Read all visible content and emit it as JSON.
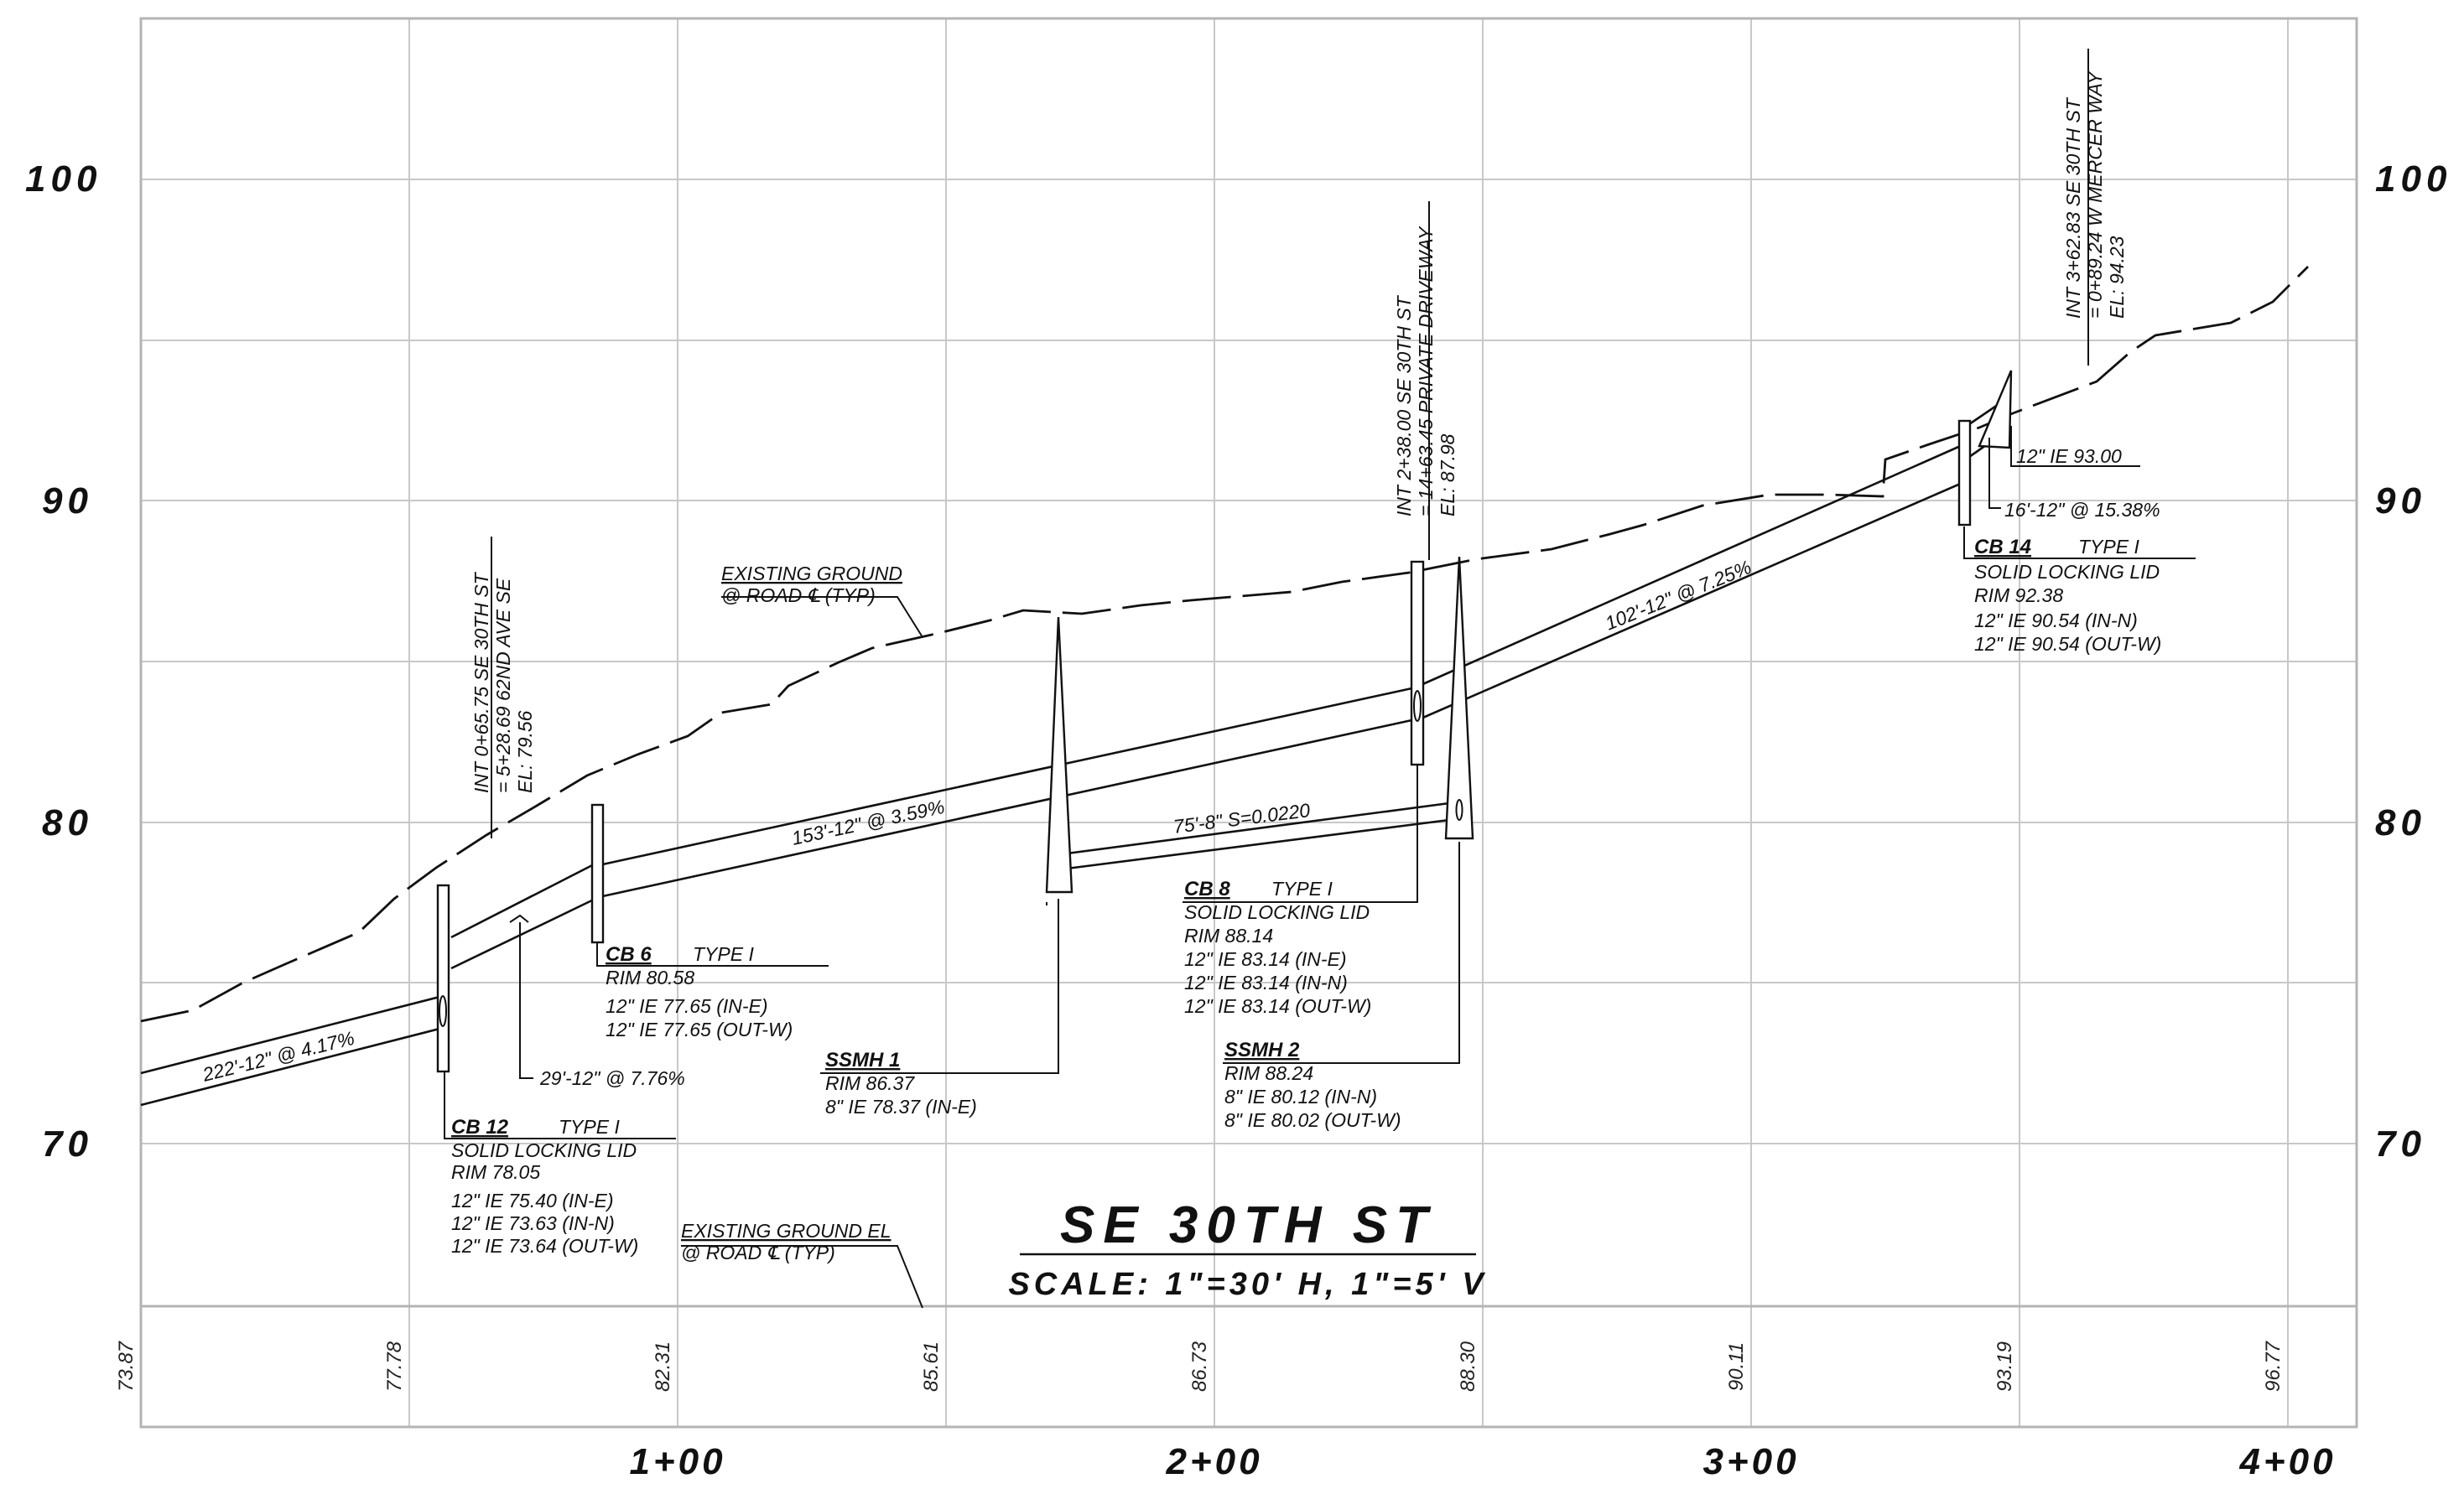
{
  "title": "SE 30TH ST",
  "scale": "SCALE: 1\"=30' H, 1\"=5' V",
  "elevation_labels": [
    "100",
    "90",
    "80",
    "70"
  ],
  "station_labels": [
    "1+00",
    "2+00",
    "3+00",
    "4+00"
  ],
  "existing_ground_elevations": [
    "73.87",
    "77.78",
    "82.31",
    "85.61",
    "86.73",
    "88.30",
    "90.11",
    "93.19",
    "96.77"
  ],
  "intersections": [
    {
      "line1": "INT 0+65.75 SE 30TH ST",
      "line2": "= 5+28.69 62ND AVE SE",
      "line3": "EL: 79.56"
    },
    {
      "line1": "INT 2+38.00 SE 30TH ST",
      "line2": "= 14+63.45 PRIVATE DRIVEWAY",
      "line3": "EL: 87.98"
    },
    {
      "line1": "INT 3+62.83 SE 30TH ST",
      "line2": "= 0+89.24 W MERCER WAY",
      "line3": "EL: 94.23"
    }
  ],
  "existing_ground_note": {
    "line1": "EXISTING GROUND",
    "line2": "@ ROAD ℄ (TYP)"
  },
  "existing_ground_el_note": {
    "line1": "EXISTING GROUND EL",
    "line2": "@ ROAD ℄ (TYP)"
  },
  "pipe_labels": [
    "222'-12\" @ 4.17%",
    "153'-12\" @ 3.59%",
    "75'-8\" S=0.0220",
    "102'-12\" @ 7.25%",
    "29'-12\" @ 7.76%",
    "16'-12\" @ 15.38%",
    "12\" IE 93.00"
  ],
  "structures": {
    "cb12": {
      "name": "CB 12",
      "type": "TYPE I",
      "lines": [
        "SOLID LOCKING LID",
        "RIM 78.05",
        "12\" IE 75.40 (IN-E)",
        "12\" IE 73.63 (IN-N)",
        "12\" IE 73.64 (OUT-W)"
      ]
    },
    "cb6": {
      "name": "CB 6",
      "type": "TYPE I",
      "lines": [
        "RIM 80.58",
        "12\" IE 77.65 (IN-E)",
        "12\" IE 77.65 (OUT-W)"
      ]
    },
    "ssmh1": {
      "name": "SSMH 1",
      "type": "",
      "lines": [
        "RIM 86.37",
        "8\" IE 78.37 (IN-E)"
      ]
    },
    "cb8": {
      "name": "CB 8",
      "type": "TYPE I",
      "lines": [
        "SOLID LOCKING LID",
        "RIM 88.14",
        "12\" IE 83.14 (IN-E)",
        "12\" IE 83.14 (IN-N)",
        "12\" IE 83.14 (OUT-W)"
      ]
    },
    "ssmh2": {
      "name": "SSMH 2",
      "type": "",
      "lines": [
        "RIM 88.24",
        "8\" IE 80.12 (IN-N)",
        "8\" IE 80.02 (OUT-W)"
      ]
    },
    "cb14": {
      "name": "CB 14",
      "type": "TYPE I",
      "lines": [
        "SOLID LOCKING LID",
        "RIM 92.38",
        "12\" IE 90.54 (IN-N)",
        "12\" IE 90.54 (OUT-W)"
      ]
    }
  }
}
